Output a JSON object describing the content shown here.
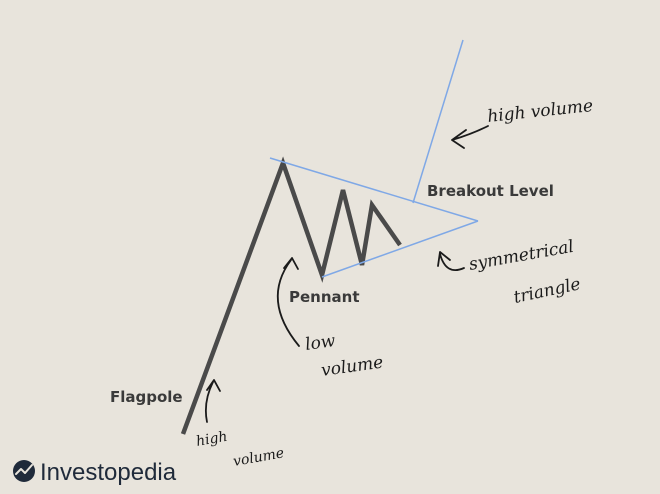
{
  "labels": {
    "breakout_level": "Breakout Level",
    "pennant": "Pennant",
    "flagpole": "Flagpole"
  },
  "annotations": {
    "breakout_volume": "high volume",
    "triangle_line1": "symmetrical",
    "triangle_line2": "triangle",
    "pennant_line1": "low",
    "pennant_line2": "volume",
    "flagpole_line1": "high",
    "flagpole_line2": "volume"
  },
  "brand": {
    "name": "Investopedia",
    "icon": "investopedia-logo-icon"
  },
  "colors": {
    "background": "#e8e4dc",
    "price_line": "#4a4a4a",
    "triangle_line": "#7fa8e6",
    "label": "#3a3a3a",
    "ink": "#1b1b1b",
    "brand": "#1f2a3a"
  }
}
